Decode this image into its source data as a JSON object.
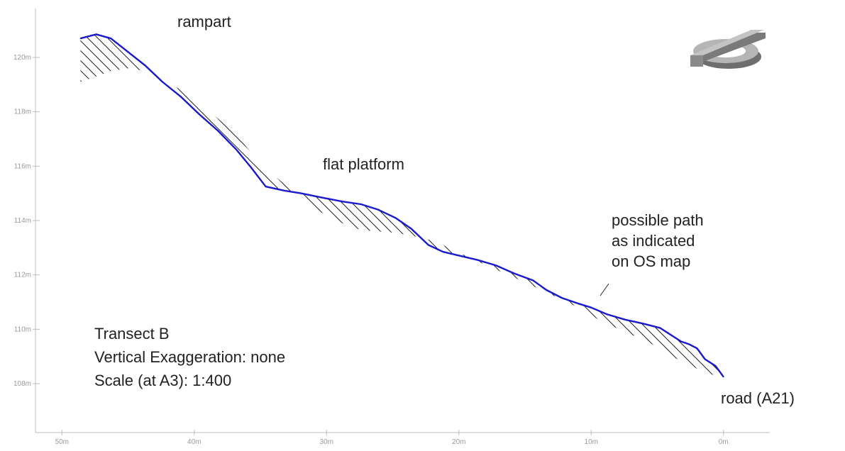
{
  "chart_data": {
    "type": "line",
    "title": "",
    "xlabel": "",
    "ylabel": "",
    "xlim": [
      52,
      -3.5
    ],
    "ylim": [
      106.2,
      121.8
    ],
    "x_ticks": [
      50,
      40,
      30,
      20,
      10,
      0
    ],
    "x_tick_labels": [
      "50m",
      "40m",
      "30m",
      "20m",
      "10m",
      "0m"
    ],
    "y_ticks": [
      108,
      110,
      112,
      114,
      116,
      118,
      120
    ],
    "y_tick_labels": [
      "108m",
      "110m",
      "112m",
      "114m",
      "116m",
      "118m",
      "120m"
    ],
    "series": [
      {
        "values_x": [
          48.6,
          47.4,
          46.3,
          45.0,
          43.7,
          42.4,
          41.0,
          39.6,
          38.2,
          36.8,
          35.7,
          34.6,
          33.2,
          31.9,
          30.4,
          28.8,
          27.4,
          26.1,
          24.8,
          23.6,
          22.3,
          21.2,
          19.9,
          18.6,
          17.2,
          15.8,
          14.4,
          13.4,
          12.2,
          11.0,
          10.0,
          8.8,
          7.4,
          6.0,
          4.8,
          4.0,
          3.2,
          2.6,
          2.0,
          1.4,
          0.6,
          0.0
        ],
        "values_y": [
          120.7,
          120.85,
          120.7,
          120.2,
          119.7,
          119.1,
          118.55,
          117.9,
          117.3,
          116.6,
          115.95,
          115.25,
          115.1,
          115.0,
          114.85,
          114.7,
          114.6,
          114.4,
          114.1,
          113.7,
          113.1,
          112.85,
          112.7,
          112.55,
          112.35,
          112.05,
          111.8,
          111.45,
          111.15,
          110.95,
          110.8,
          110.55,
          110.35,
          110.2,
          110.05,
          109.8,
          109.55,
          109.45,
          109.3,
          108.9,
          108.65,
          108.25
        ]
      }
    ],
    "hatch_baseline_y": [
      119.1,
      119.3,
      119.5,
      119.6,
      119.5,
      119.2,
      118.8,
      118.3,
      117.75,
      117.15,
      116.5,
      115.9,
      115.35,
      114.8,
      114.3,
      113.9,
      113.65,
      113.6,
      113.55,
      113.45,
      113.3,
      113.1,
      112.8,
      112.5,
      112.2,
      111.9,
      111.6,
      111.35,
      111.1,
      110.8,
      110.5,
      110.2,
      109.9,
      109.6,
      109.3,
      109.0,
      108.85,
      108.7,
      108.55,
      108.4,
      108.3,
      108.25
    ],
    "annotations": [
      {
        "text": "rampart"
      },
      {
        "text": "flat platform"
      },
      {
        "text": "possible path\nas indicated\non OS map"
      },
      {
        "text": "road (A21)"
      }
    ],
    "info_lines": [
      "Transect B",
      "Vertical Exaggeration: none",
      "Scale (at A3): 1:400"
    ],
    "grid": false,
    "legend": "none"
  },
  "colors": {
    "profile_line": "#1a1acc",
    "hatch": "#222222",
    "axis": "#bdbdbd",
    "tick_label": "#9a9a9a",
    "symbol": "#b5b5b5"
  },
  "icons": {
    "logo": "north-arrow-3d-icon"
  }
}
